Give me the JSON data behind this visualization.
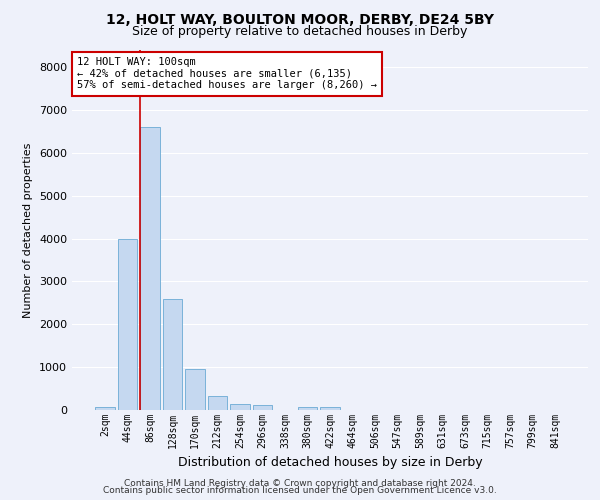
{
  "title1": "12, HOLT WAY, BOULTON MOOR, DERBY, DE24 5BY",
  "title2": "Size of property relative to detached houses in Derby",
  "xlabel": "Distribution of detached houses by size in Derby",
  "ylabel": "Number of detached properties",
  "categories": [
    "2sqm",
    "44sqm",
    "86sqm",
    "128sqm",
    "170sqm",
    "212sqm",
    "254sqm",
    "296sqm",
    "338sqm",
    "380sqm",
    "422sqm",
    "464sqm",
    "506sqm",
    "547sqm",
    "589sqm",
    "631sqm",
    "673sqm",
    "715sqm",
    "757sqm",
    "799sqm",
    "841sqm"
  ],
  "values": [
    80,
    4000,
    6600,
    2600,
    950,
    320,
    130,
    110,
    0,
    80,
    80,
    0,
    0,
    0,
    0,
    0,
    0,
    0,
    0,
    0,
    0
  ],
  "bar_color": "#c5d8f0",
  "bar_edge_color": "#6aaad4",
  "bar_width": 0.85,
  "ylim": [
    0,
    8400
  ],
  "yticks": [
    0,
    1000,
    2000,
    3000,
    4000,
    5000,
    6000,
    7000,
    8000
  ],
  "vline_x": 1.55,
  "vline_color": "#cc0000",
  "annotation_text": "12 HOLT WAY: 100sqm\n← 42% of detached houses are smaller (6,135)\n57% of semi-detached houses are larger (8,260) →",
  "annotation_fontsize": 7.5,
  "annotation_box_color": "#ffffff",
  "annotation_border_color": "#cc0000",
  "footer1": "Contains HM Land Registry data © Crown copyright and database right 2024.",
  "footer2": "Contains public sector information licensed under the Open Government Licence v3.0.",
  "background_color": "#eef1fa",
  "grid_color": "#ffffff",
  "title1_fontsize": 10,
  "title2_fontsize": 9,
  "xlabel_fontsize": 9,
  "ylabel_fontsize": 8,
  "footer_fontsize": 6.5,
  "tick_fontsize": 7
}
